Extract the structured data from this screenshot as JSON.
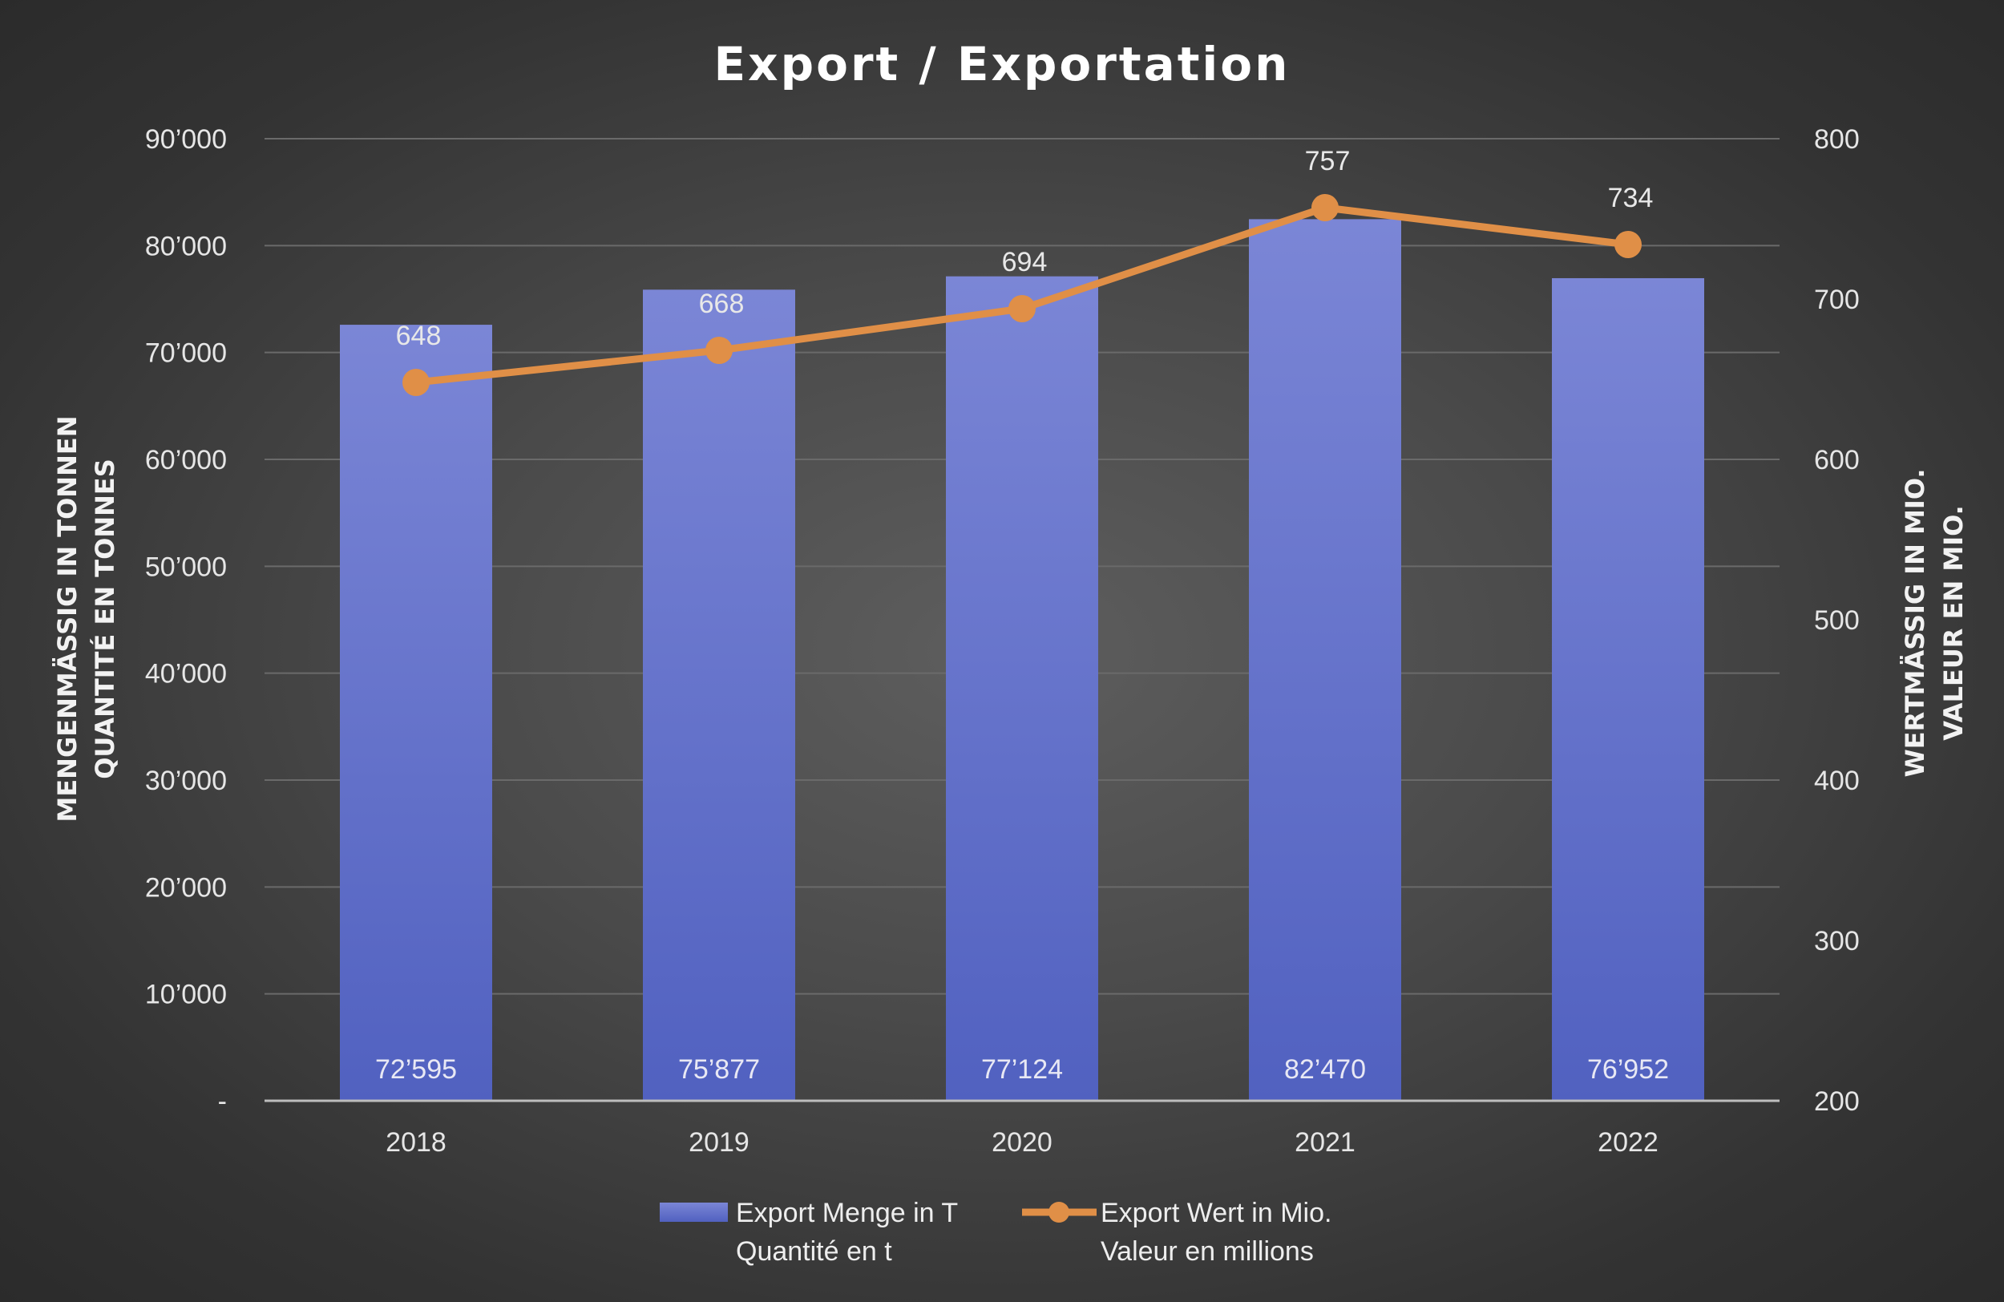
{
  "chart_data": {
    "type": "bar+line",
    "title": "Export / Exportation",
    "categories": [
      "2018",
      "2019",
      "2020",
      "2021",
      "2022"
    ],
    "series": [
      {
        "name": "Export Menge in T",
        "name2": "Quantité en t",
        "type": "bar",
        "axis": "left",
        "values": [
          72595,
          75877,
          77124,
          82470,
          76952
        ],
        "labels": [
          "72’595",
          "75’877",
          "77’124",
          "82’470",
          "76’952"
        ],
        "color": "#6676d4"
      },
      {
        "name": "Export Wert in Mio.",
        "name2": "Valeur en millions",
        "type": "line",
        "axis": "right",
        "values": [
          648,
          668,
          694,
          757,
          734
        ],
        "labels": [
          "648",
          "668",
          "694",
          "757",
          "734"
        ],
        "color": "#e08f47"
      }
    ],
    "y_left": {
      "label_line1": "MENGENMÄSSIG IN TONNEN",
      "label_line2": "QUANTITÉ EN TONNES",
      "range": [
        0,
        90000
      ],
      "ticks": [
        0,
        10000,
        20000,
        30000,
        40000,
        50000,
        60000,
        70000,
        80000,
        90000
      ],
      "tick_labels": [
        "-",
        "10’000",
        "20’000",
        "30’000",
        "40’000",
        "50’000",
        "60’000",
        "70’000",
        "80’000",
        "90’000"
      ]
    },
    "y_right": {
      "label_line1": "WERTMÄSSIG IN MIO.",
      "label_line2": "VALEUR  EN MIO.",
      "range": [
        200,
        800
      ],
      "ticks": [
        200,
        300,
        400,
        500,
        600,
        700,
        800
      ],
      "tick_labels": [
        "200",
        "300",
        "400",
        "500",
        "600",
        "700",
        "800"
      ]
    },
    "grid": true,
    "legend_position": "bottom-center"
  }
}
